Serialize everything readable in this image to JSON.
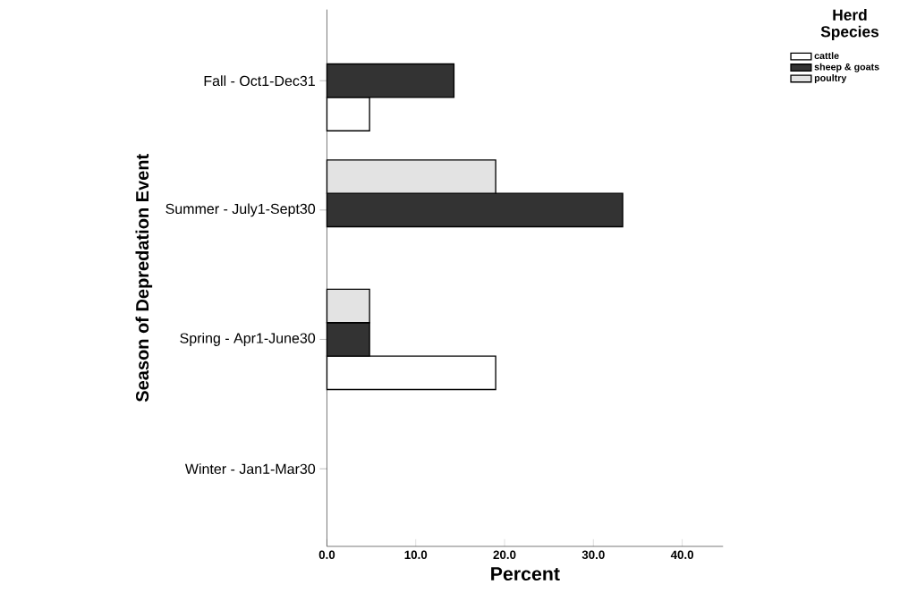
{
  "chart_data": {
    "type": "bar",
    "orientation": "horizontal",
    "xlabel": "Percent",
    "ylabel": "Season of Depredation Event",
    "legend_title": "Herd Species",
    "categories": [
      "Fall - Oct1-Dec31",
      "Summer - July1-Sept30",
      "Spring - Apr1-June30",
      "Winter - Jan1-Mar30"
    ],
    "series": [
      {
        "name": "cattle",
        "color": "#ffffff",
        "values": [
          4.8,
          0,
          19.0,
          0
        ]
      },
      {
        "name": "sheep & goats",
        "color": "#333333",
        "values": [
          14.3,
          33.3,
          4.8,
          0
        ]
      },
      {
        "name": "poultry",
        "color": "#e3e3e3",
        "values": [
          0,
          19.0,
          4.8,
          0
        ]
      }
    ],
    "xlim": [
      0,
      44.6
    ],
    "xticks": [
      {
        "value": 0,
        "label": "0.0"
      },
      {
        "value": 10,
        "label": "10.0"
      },
      {
        "value": 20,
        "label": "20.0"
      },
      {
        "value": 30,
        "label": "30.0"
      },
      {
        "value": 40,
        "label": "40.0"
      }
    ],
    "grid": false,
    "legend": "top right"
  }
}
